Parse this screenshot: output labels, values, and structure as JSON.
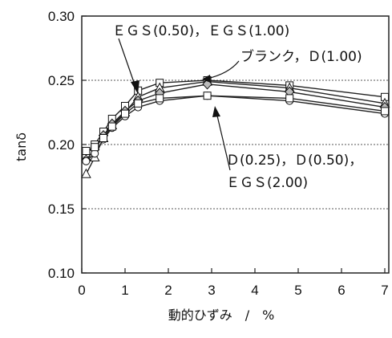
{
  "chart_data": {
    "type": "line",
    "xlabel": "動的ひずみ　/　%",
    "ylabel": "tanδ",
    "xlim": [
      0,
      7
    ],
    "ylim": [
      0.1,
      0.3
    ],
    "x_ticks": [
      "0",
      "1",
      "2",
      "3",
      "4",
      "5",
      "6",
      "7"
    ],
    "y_ticks": [
      "0.10",
      "0.15",
      "0.20",
      "0.25",
      "0.30"
    ],
    "grid": "horizontal-dotted",
    "series": [
      {
        "marker": "square",
        "color": "#ffffff",
        "x": [
          0.1,
          0.3,
          0.5,
          0.7,
          1.0,
          1.3,
          1.8,
          2.9,
          4.8,
          7.0
        ],
        "y": [
          0.192,
          0.2,
          0.21,
          0.22,
          0.23,
          0.242,
          0.248,
          0.25,
          0.246,
          0.237
        ]
      },
      {
        "marker": "triangle",
        "color": "#ffffff",
        "x": [
          0.1,
          0.3,
          0.5,
          0.7,
          1.0,
          1.3,
          1.8,
          2.9,
          4.8,
          7.0
        ],
        "y": [
          0.177,
          0.19,
          0.205,
          0.215,
          0.225,
          0.237,
          0.244,
          0.249,
          0.244,
          0.232
        ]
      },
      {
        "marker": "diamond",
        "color": "#bbbbbb",
        "x": [
          0.1,
          0.3,
          0.5,
          0.7,
          1.0,
          1.3,
          1.8,
          2.9,
          4.8,
          7.0
        ],
        "y": [
          0.188,
          0.196,
          0.207,
          0.216,
          0.226,
          0.234,
          0.24,
          0.247,
          0.241,
          0.229
        ]
      },
      {
        "marker": "circle",
        "color": "#ffffff",
        "x": [
          0.1,
          0.3,
          0.5,
          0.7,
          1.0,
          1.3,
          1.8,
          2.9,
          4.8,
          7.0
        ],
        "y": [
          0.187,
          0.193,
          0.204,
          0.213,
          0.222,
          0.229,
          0.234,
          0.238,
          0.234,
          0.224
        ]
      },
      {
        "marker": "square",
        "color": "#ffffff",
        "x": [
          0.1,
          0.3,
          0.5,
          0.7,
          1.0,
          1.3,
          1.8,
          2.9,
          4.8,
          7.0
        ],
        "y": [
          0.195,
          0.198,
          0.205,
          0.214,
          0.224,
          0.232,
          0.236,
          0.238,
          0.236,
          0.226
        ]
      }
    ],
    "annotations": [
      {
        "text": "ＥＧＳ(0.50)，ＥＧＳ(1.00)"
      },
      {
        "text": "ブランク，Ｄ(1.00)"
      },
      {
        "text": "Ｄ(0.25)，Ｄ(0.50)，"
      },
      {
        "text": "ＥＧＳ(2.00)"
      }
    ]
  }
}
